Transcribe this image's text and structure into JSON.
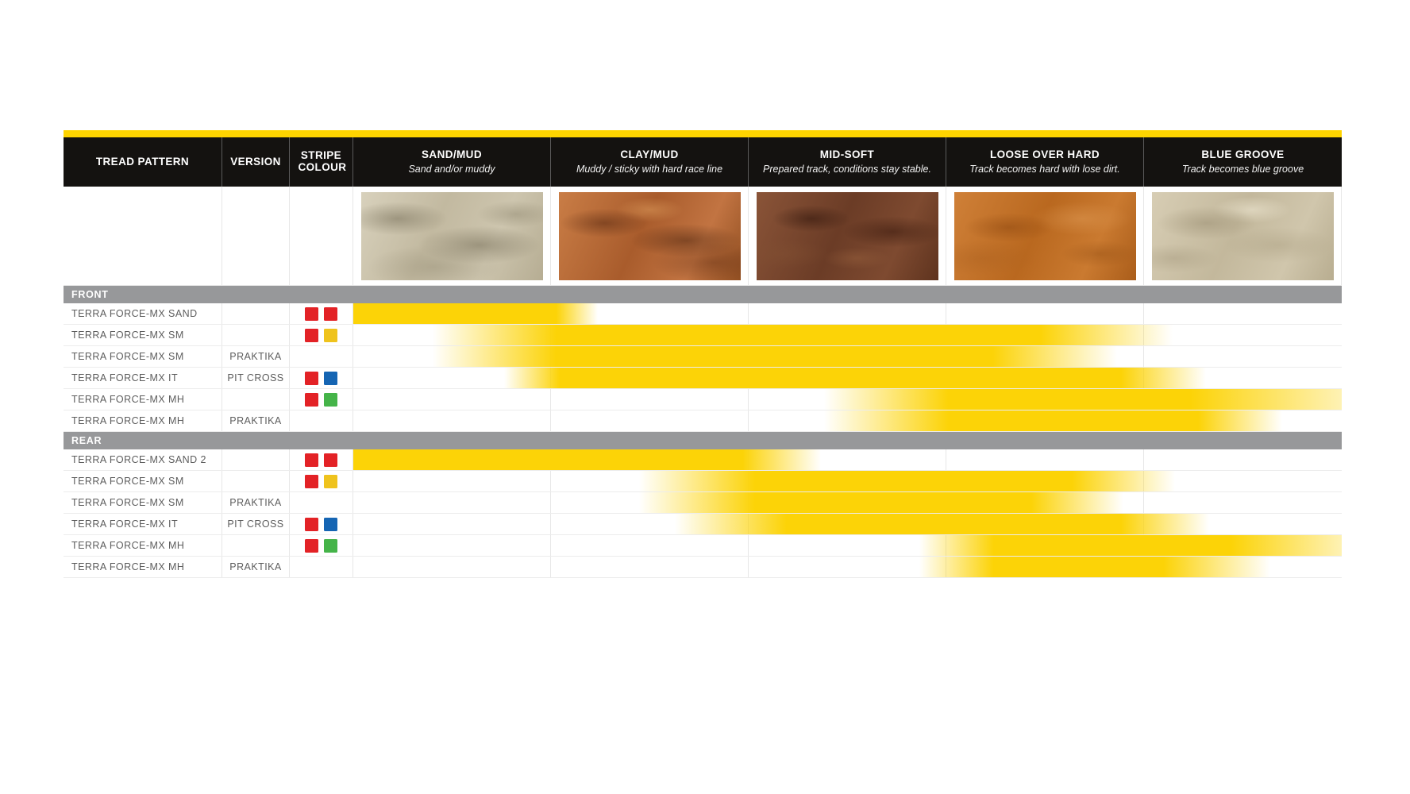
{
  "colors": {
    "accent": "#ffd400",
    "bar": "#fcd307",
    "section_bar": "#97989a",
    "header_bg": "#141210",
    "red": "#e32226",
    "yellow": "#efc31d",
    "blue": "#1565b3",
    "green": "#45b449"
  },
  "header": {
    "columns": [
      {
        "key": "tread",
        "label": "TREAD PATTERN",
        "subtitle": ""
      },
      {
        "key": "version",
        "label": "VERSION",
        "subtitle": ""
      },
      {
        "key": "stripe",
        "label": "STRIPE COLOUR",
        "subtitle": ""
      },
      {
        "key": "sand_mud",
        "label": "SAND/MUD",
        "subtitle": "Sand and/or muddy"
      },
      {
        "key": "clay_mud",
        "label": "CLAY/MUD",
        "subtitle": "Muddy / sticky with hard race line"
      },
      {
        "key": "mid_soft",
        "label": "MID-SOFT",
        "subtitle": "Prepared track, conditions stay stable."
      },
      {
        "key": "loose_over_hard",
        "label": "LOOSE OVER HARD",
        "subtitle": "Track becomes hard with lose dirt."
      },
      {
        "key": "blue_groove",
        "label": "BLUE GROOVE",
        "subtitle": "Track becomes blue groove"
      }
    ]
  },
  "terrains": [
    {
      "name": "sand-mud-texture",
      "class": "tex-sand"
    },
    {
      "name": "clay-mud-texture",
      "class": "tex-clay"
    },
    {
      "name": "mid-soft-texture",
      "class": "tex-mid"
    },
    {
      "name": "loose-over-hard-texture",
      "class": "tex-loose"
    },
    {
      "name": "blue-groove-texture",
      "class": "tex-blue"
    }
  ],
  "sections": [
    {
      "label": "FRONT",
      "rows": [
        {
          "tread": "TERRA FORCE-MX SAND",
          "version": "",
          "stripes": [
            "red",
            "red"
          ],
          "bar": {
            "start": 0,
            "solid_start": 0,
            "solid_end": 20.5,
            "end": 24.7
          }
        },
        {
          "tread": "TERRA FORCE-MX SM",
          "version": "",
          "stripes": [
            "red",
            "yellow"
          ],
          "bar": {
            "start": 8.0,
            "solid_start": 20.5,
            "solid_end": 69.5,
            "end": 82.9
          }
        },
        {
          "tread": "TERRA FORCE-MX SM",
          "version": "PRAKTIKA",
          "stripes": [],
          "bar": {
            "start": 8.0,
            "solid_start": 20.5,
            "solid_end": 64.7,
            "end": 77.3
          }
        },
        {
          "tread": "TERRA FORCE-MX IT",
          "version": "PIT CROSS",
          "stripes": [
            "red",
            "blue"
          ],
          "bar": {
            "start": 15.3,
            "solid_start": 20.9,
            "solid_end": 77.7,
            "end": 86.3
          }
        },
        {
          "tread": "TERRA FORCE-MX MH",
          "version": "",
          "stripes": [
            "red",
            "green"
          ],
          "bar": {
            "start": 47.6,
            "solid_start": 60.2,
            "solid_end": 84.7,
            "end": 100,
            "end_opacity": 0.3
          }
        },
        {
          "tread": "TERRA FORCE-MX MH",
          "version": "PRAKTIKA",
          "stripes": [],
          "bar": {
            "start": 47.6,
            "solid_start": 60.2,
            "solid_end": 85.5,
            "end": 94.0
          }
        }
      ]
    },
    {
      "label": "REAR",
      "rows": [
        {
          "tread": "TERRA FORCE-MX SAND 2",
          "version": "",
          "stripes": [
            "red",
            "red"
          ],
          "bar": {
            "start": 0,
            "solid_start": 0,
            "solid_end": 39.4,
            "end": 47.3
          }
        },
        {
          "tread": "TERRA FORCE-MX SM",
          "version": "",
          "stripes": [
            "red",
            "yellow"
          ],
          "bar": {
            "start": 28.9,
            "solid_start": 40.6,
            "solid_end": 72.7,
            "end": 83.1
          }
        },
        {
          "tread": "TERRA FORCE-MX SM",
          "version": "PRAKTIKA",
          "stripes": [],
          "bar": {
            "start": 28.9,
            "solid_start": 40.6,
            "solid_end": 68.6,
            "end": 77.9
          }
        },
        {
          "tread": "TERRA FORCE-MX IT",
          "version": "PIT CROSS",
          "stripes": [
            "red",
            "blue"
          ],
          "bar": {
            "start": 32.5,
            "solid_start": 43.8,
            "solid_end": 77.7,
            "end": 86.6
          }
        },
        {
          "tread": "TERRA FORCE-MX MH",
          "version": "",
          "stripes": [
            "red",
            "green"
          ],
          "bar": {
            "start": 57.3,
            "solid_start": 64.8,
            "solid_end": 88.8,
            "end": 100,
            "end_opacity": 0.3
          }
        },
        {
          "tread": "TERRA FORCE-MX MH",
          "version": "PRAKTIKA",
          "stripes": [],
          "bar": {
            "start": 57.3,
            "solid_start": 64.8,
            "solid_end": 82.0,
            "end": 92.8
          }
        }
      ]
    }
  ],
  "chart_data": {
    "type": "bar",
    "subtype": "horizontal-range-spectrum",
    "title": "",
    "x_axis_categories": [
      "SAND/MUD",
      "CLAY/MUD",
      "MID-SOFT",
      "LOOSE OVER HARD",
      "BLUE GROOVE"
    ],
    "x_scale_note": "units are terrain columns, 0 = start of SAND/MUD, 5 = end of BLUE GROOVE; 'range' includes gradient fades, 'solid' is the full-intensity span",
    "xlim": [
      0,
      5
    ],
    "series": [
      {
        "section": "FRONT",
        "name": "TERRA FORCE-MX SAND",
        "version": "",
        "range": [
          0,
          1.24
        ],
        "solid": [
          0,
          1.03
        ]
      },
      {
        "section": "FRONT",
        "name": "TERRA FORCE-MX SM",
        "version": "",
        "range": [
          0.4,
          4.15
        ],
        "solid": [
          1.03,
          3.48
        ]
      },
      {
        "section": "FRONT",
        "name": "TERRA FORCE-MX SM",
        "version": "PRAKTIKA",
        "range": [
          0.4,
          3.87
        ],
        "solid": [
          1.03,
          3.24
        ]
      },
      {
        "section": "FRONT",
        "name": "TERRA FORCE-MX IT",
        "version": "PIT CROSS",
        "range": [
          0.77,
          4.32
        ],
        "solid": [
          1.05,
          3.89
        ]
      },
      {
        "section": "FRONT",
        "name": "TERRA FORCE-MX MH",
        "version": "",
        "range": [
          2.38,
          5.0
        ],
        "solid": [
          3.01,
          4.24
        ]
      },
      {
        "section": "FRONT",
        "name": "TERRA FORCE-MX MH",
        "version": "PRAKTIKA",
        "range": [
          2.38,
          4.7
        ],
        "solid": [
          3.01,
          4.28
        ]
      },
      {
        "section": "REAR",
        "name": "TERRA FORCE-MX SAND 2",
        "version": "",
        "range": [
          0,
          2.37
        ],
        "solid": [
          0,
          1.97
        ]
      },
      {
        "section": "REAR",
        "name": "TERRA FORCE-MX SM",
        "version": "",
        "range": [
          1.45,
          4.16
        ],
        "solid": [
          2.03,
          3.64
        ]
      },
      {
        "section": "REAR",
        "name": "TERRA FORCE-MX SM",
        "version": "PRAKTIKA",
        "range": [
          1.45,
          3.9
        ],
        "solid": [
          2.03,
          3.43
        ]
      },
      {
        "section": "REAR",
        "name": "TERRA FORCE-MX IT",
        "version": "PIT CROSS",
        "range": [
          1.63,
          4.33
        ],
        "solid": [
          2.19,
          3.89
        ]
      },
      {
        "section": "REAR",
        "name": "TERRA FORCE-MX MH",
        "version": "",
        "range": [
          2.87,
          5.0
        ],
        "solid": [
          3.24,
          4.44
        ]
      },
      {
        "section": "REAR",
        "name": "TERRA FORCE-MX MH",
        "version": "PRAKTIKA",
        "range": [
          2.87,
          4.64
        ],
        "solid": [
          3.24,
          4.1
        ]
      }
    ],
    "legend": "none",
    "grid": "light vertical column separators"
  }
}
